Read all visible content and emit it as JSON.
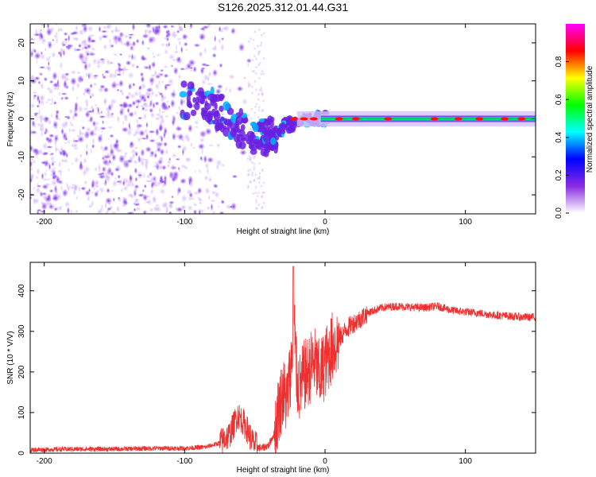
{
  "title": "S126.2025.312.01.44.G31",
  "chart_data": [
    {
      "type": "heatmap",
      "name": "spectrogram",
      "xlabel": "Height of straight line (km)",
      "ylabel": "Frequency (Hz)",
      "xlim": [
        -210,
        150
      ],
      "ylim": [
        -25,
        25
      ],
      "xticks": [
        -200,
        -100,
        0,
        100
      ],
      "yticks": [
        -20,
        -10,
        0,
        10,
        20
      ],
      "colorbar": {
        "label": "Normalized spectral amplitude",
        "range": [
          0,
          1
        ],
        "ticks": [
          "0.0",
          "0.2",
          "0.4",
          "0.6",
          "0.8"
        ],
        "tick_values": [
          0.0,
          0.2,
          0.4,
          0.6,
          0.8
        ],
        "colormap": [
          "#ffffff",
          "#8a2be2",
          "#0000ff",
          "#00ffff",
          "#00ff00",
          "#ffff00",
          "#ff0000",
          "#ff00ff"
        ]
      },
      "features": [
        {
          "name": "scattered noise",
          "x_range": [
            -210,
            -50
          ],
          "freq_range": [
            -25,
            25
          ],
          "amplitude": 0.1
        },
        {
          "name": "descending track",
          "points": [
            [
              -100,
              5
            ],
            [
              -80,
              3
            ],
            [
              -65,
              -2
            ],
            [
              -45,
              -5
            ],
            [
              -35,
              -4
            ]
          ],
          "amplitude": 0.25
        },
        {
          "name": "converging track",
          "points": [
            [
              -35,
              -4
            ],
            [
              -25,
              -1
            ],
            [
              -10,
              0
            ],
            [
              0,
              0
            ]
          ],
          "amplitude": 0.45
        },
        {
          "name": "stable tone",
          "x_range": [
            0,
            150
          ],
          "freq": 0,
          "amplitude": 0.9
        }
      ]
    },
    {
      "type": "line",
      "name": "snr",
      "xlabel": "Height of straight line (km)",
      "ylabel": "SNR (10 * V/V)",
      "xlim": [
        -210,
        150
      ],
      "ylim": [
        0,
        470
      ],
      "xticks": [
        -200,
        -100,
        0,
        100
      ],
      "yticks": [
        0,
        100,
        200,
        300,
        400
      ],
      "color": "#ee3030",
      "series": [
        {
          "name": "SNR",
          "x": [
            -210,
            -180,
            -150,
            -120,
            -100,
            -85,
            -75,
            -68,
            -62,
            -58,
            -55,
            -52,
            -48,
            -45,
            -40,
            -36,
            -33,
            -30,
            -27,
            -24,
            -22,
            -20,
            -18,
            -15,
            -12,
            -8,
            -4,
            0,
            5,
            10,
            15,
            20,
            25,
            30,
            40,
            50,
            60,
            70,
            80,
            90,
            100,
            110,
            120,
            130,
            140,
            150
          ],
          "y": [
            8,
            10,
            10,
            12,
            12,
            15,
            25,
            45,
            95,
            75,
            55,
            30,
            15,
            12,
            20,
            50,
            110,
            150,
            130,
            220,
            320,
            180,
            160,
            190,
            200,
            230,
            190,
            220,
            260,
            280,
            305,
            320,
            330,
            345,
            358,
            362,
            360,
            358,
            362,
            352,
            348,
            345,
            340,
            338,
            335,
            335
          ]
        }
      ]
    }
  ]
}
